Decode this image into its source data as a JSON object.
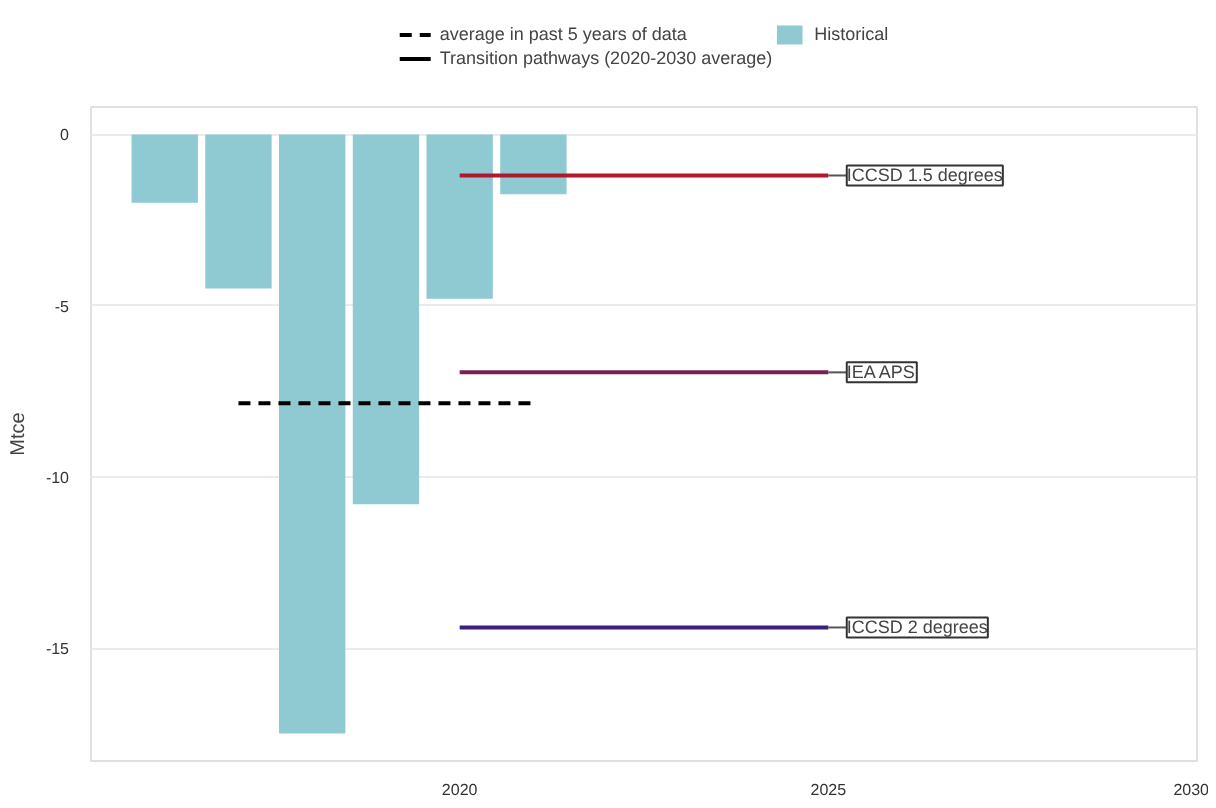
{
  "chart_data": {
    "type": "bar",
    "ylabel": "Mtce",
    "series": [
      {
        "name": "Historical",
        "color": "#8fc9d1",
        "x": [
          2016,
          2017,
          2018,
          2019,
          2020,
          2021
        ],
        "values": [
          -2.0,
          -4.5,
          -17.5,
          -10.8,
          -4.8,
          -1.75
        ]
      },
      {
        "name": "average in past 5 years of data",
        "type": "line",
        "line_style": "dashed",
        "color": "#000000",
        "x": [
          2017,
          2021
        ],
        "values": [
          -7.85,
          -7.85
        ]
      },
      {
        "name": "ICCSD 1.5 degrees",
        "type": "line",
        "color": "#b2182b",
        "x": [
          2020,
          2025
        ],
        "values": [
          -1.2,
          -1.2
        ]
      },
      {
        "name": "IEA APS",
        "type": "line",
        "color": "#7b2151",
        "x": [
          2020,
          2025
        ],
        "values": [
          -6.95,
          -6.95
        ]
      },
      {
        "name": "ICCSD 2 degrees",
        "type": "line",
        "color": "#3b1f7a",
        "x": [
          2020,
          2025
        ],
        "values": [
          -14.4,
          -14.4
        ]
      }
    ],
    "annotations": [
      "Transition pathways (2020-2030 average)"
    ],
    "xlim": [
      2015,
      2030
    ],
    "xticks": [
      2020,
      2025,
      2030
    ],
    "ylim": [
      -18.3,
      0.8
    ],
    "yticks": [
      0,
      -5,
      -10,
      -15
    ],
    "grid": "y",
    "legend": "top"
  }
}
